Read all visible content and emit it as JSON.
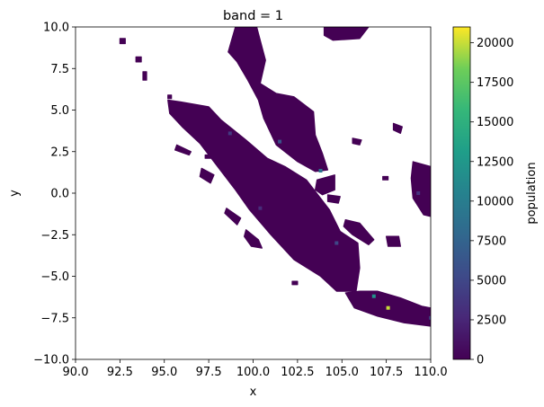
{
  "chart_data": {
    "type": "heatmap",
    "title": "band = 1",
    "xlabel": "x",
    "ylabel": "y",
    "xlim": [
      90.0,
      110.0
    ],
    "ylim": [
      -10.0,
      10.0
    ],
    "x_ticks": [
      "90.0",
      "92.5",
      "95.0",
      "97.5",
      "100.0",
      "102.5",
      "105.0",
      "107.5",
      "110.0"
    ],
    "x_tick_values": [
      90.0,
      92.5,
      95.0,
      97.5,
      100.0,
      102.5,
      105.0,
      107.5,
      110.0
    ],
    "y_ticks": [
      "10.0",
      "7.5",
      "5.0",
      "2.5",
      "0.0",
      "−2.5",
      "−5.0",
      "−7.5",
      "−10.0"
    ],
    "y_tick_values": [
      10.0,
      7.5,
      5.0,
      2.5,
      0.0,
      -2.5,
      -5.0,
      -7.5,
      -10.0
    ],
    "colorbar": {
      "label": "population",
      "range": [
        0,
        21000
      ],
      "colormap": "viridis",
      "ticks": [
        "0",
        "2500",
        "5000",
        "7500",
        "10000",
        "12500",
        "15000",
        "17500",
        "20000"
      ],
      "tick_values": [
        0,
        2500,
        5000,
        7500,
        10000,
        12500,
        15000,
        17500,
        20000
      ]
    },
    "grid": false,
    "land_color": "#440154",
    "hotspots": [
      {
        "lon": 106.8,
        "lat": -6.2,
        "value": 12000
      },
      {
        "lon": 107.6,
        "lat": -6.9,
        "value": 20000
      },
      {
        "lon": 101.5,
        "lat": 3.1,
        "value": 6000
      },
      {
        "lon": 103.8,
        "lat": 1.35,
        "value": 9000
      },
      {
        "lon": 98.7,
        "lat": 3.6,
        "value": 4000
      },
      {
        "lon": 104.7,
        "lat": -3.0,
        "value": 5000
      },
      {
        "lon": 100.4,
        "lat": -0.9,
        "value": 3000
      },
      {
        "lon": 109.3,
        "lat": 0.0,
        "value": 3500
      },
      {
        "lon": 110.0,
        "lat": -7.5,
        "value": 4500
      }
    ],
    "land": [
      {
        "name": "sumatra",
        "points": [
          [
            95.2,
            5.6
          ],
          [
            95.9,
            5.5
          ],
          [
            97.5,
            5.2
          ],
          [
            98.2,
            4.4
          ],
          [
            99.6,
            3.2
          ],
          [
            100.8,
            2.1
          ],
          [
            101.8,
            1.6
          ],
          [
            103.0,
            0.8
          ],
          [
            104.3,
            -1.0
          ],
          [
            104.9,
            -2.3
          ],
          [
            105.9,
            -3.0
          ],
          [
            106.0,
            -4.5
          ],
          [
            105.8,
            -5.9
          ],
          [
            104.7,
            -5.9
          ],
          [
            103.8,
            -5.0
          ],
          [
            102.3,
            -4.0
          ],
          [
            101.0,
            -2.5
          ],
          [
            99.8,
            -1.0
          ],
          [
            99.0,
            0.2
          ],
          [
            98.0,
            1.6
          ],
          [
            97.0,
            3.0
          ],
          [
            96.0,
            4.0
          ],
          [
            95.3,
            4.8
          ]
        ]
      },
      {
        "name": "malay-peninsula",
        "points": [
          [
            99.0,
            10.0
          ],
          [
            100.2,
            10.0
          ],
          [
            100.7,
            8.0
          ],
          [
            100.4,
            6.6
          ],
          [
            101.3,
            6.0
          ],
          [
            102.3,
            5.8
          ],
          [
            103.4,
            4.9
          ],
          [
            103.5,
            3.5
          ],
          [
            103.9,
            2.4
          ],
          [
            104.2,
            1.4
          ],
          [
            103.5,
            1.3
          ],
          [
            102.5,
            1.9
          ],
          [
            101.3,
            2.9
          ],
          [
            100.6,
            4.5
          ],
          [
            100.3,
            5.6
          ],
          [
            99.7,
            6.8
          ],
          [
            99.1,
            7.9
          ],
          [
            98.6,
            8.5
          ]
        ]
      },
      {
        "name": "java",
        "points": [
          [
            105.2,
            -6.0
          ],
          [
            106.0,
            -5.9
          ],
          [
            107.0,
            -5.9
          ],
          [
            108.3,
            -6.3
          ],
          [
            109.5,
            -6.8
          ],
          [
            110.0,
            -6.9
          ],
          [
            110.0,
            -8.0
          ],
          [
            108.5,
            -7.8
          ],
          [
            107.0,
            -7.4
          ],
          [
            105.7,
            -6.9
          ]
        ]
      },
      {
        "name": "thailand-east",
        "points": [
          [
            104.0,
            10.0
          ],
          [
            106.5,
            10.0
          ],
          [
            106.0,
            9.3
          ],
          [
            104.5,
            9.2
          ],
          [
            104.0,
            9.5
          ]
        ]
      },
      {
        "name": "borneo",
        "points": [
          [
            109.0,
            1.9
          ],
          [
            110.0,
            1.6
          ],
          [
            110.0,
            -1.4
          ],
          [
            109.6,
            -1.3
          ],
          [
            109.0,
            -0.3
          ],
          [
            108.9,
            0.9
          ]
        ]
      },
      {
        "name": "bangka",
        "points": [
          [
            105.2,
            -1.6
          ],
          [
            106.0,
            -1.8
          ],
          [
            106.8,
            -2.8
          ],
          [
            106.5,
            -3.1
          ],
          [
            105.6,
            -2.5
          ],
          [
            105.1,
            -2.0
          ]
        ]
      },
      {
        "name": "belitung",
        "points": [
          [
            107.5,
            -2.6
          ],
          [
            108.2,
            -2.6
          ],
          [
            108.3,
            -3.2
          ],
          [
            107.6,
            -3.2
          ]
        ]
      },
      {
        "name": "riau",
        "points": [
          [
            103.6,
            0.8
          ],
          [
            104.6,
            1.1
          ],
          [
            104.6,
            0.2
          ],
          [
            103.9,
            -0.1
          ],
          [
            103.5,
            0.2
          ]
        ]
      },
      {
        "name": "lingga",
        "points": [
          [
            104.2,
            -0.1
          ],
          [
            104.9,
            -0.2
          ],
          [
            104.8,
            -0.6
          ],
          [
            104.2,
            -0.5
          ]
        ]
      },
      {
        "name": "simeulue",
        "points": [
          [
            95.7,
            2.9
          ],
          [
            96.5,
            2.5
          ],
          [
            96.4,
            2.3
          ],
          [
            95.6,
            2.6
          ]
        ]
      },
      {
        "name": "nias",
        "points": [
          [
            97.1,
            1.5
          ],
          [
            97.8,
            1.1
          ],
          [
            97.6,
            0.6
          ],
          [
            97.0,
            1.0
          ]
        ]
      },
      {
        "name": "mentawai-1",
        "points": [
          [
            98.5,
            -0.9
          ],
          [
            99.3,
            -1.5
          ],
          [
            99.1,
            -1.9
          ],
          [
            98.4,
            -1.2
          ]
        ]
      },
      {
        "name": "mentawai-2",
        "points": [
          [
            99.6,
            -2.2
          ],
          [
            100.3,
            -2.8
          ],
          [
            100.5,
            -3.3
          ],
          [
            99.9,
            -3.2
          ],
          [
            99.5,
            -2.6
          ]
        ]
      },
      {
        "name": "enggano",
        "points": [
          [
            102.2,
            -5.3
          ],
          [
            102.5,
            -5.3
          ],
          [
            102.5,
            -5.5
          ],
          [
            102.2,
            -5.5
          ]
        ]
      },
      {
        "name": "natuna",
        "points": [
          [
            107.9,
            4.2
          ],
          [
            108.4,
            4.0
          ],
          [
            108.3,
            3.6
          ],
          [
            107.9,
            3.8
          ]
        ]
      },
      {
        "name": "anambas",
        "points": [
          [
            105.6,
            3.3
          ],
          [
            106.1,
            3.2
          ],
          [
            106.0,
            2.9
          ],
          [
            105.6,
            3.0
          ]
        ]
      },
      {
        "name": "tambelan",
        "points": [
          [
            107.3,
            1.0
          ],
          [
            107.6,
            1.0
          ],
          [
            107.6,
            0.8
          ],
          [
            107.3,
            0.8
          ]
        ]
      },
      {
        "name": "nicobar-1",
        "points": [
          [
            93.4,
            8.2
          ],
          [
            93.7,
            8.2
          ],
          [
            93.7,
            7.9
          ],
          [
            93.4,
            7.9
          ]
        ]
      },
      {
        "name": "nicobar-2",
        "points": [
          [
            93.8,
            7.3
          ],
          [
            94.0,
            7.3
          ],
          [
            94.0,
            6.8
          ],
          [
            93.8,
            6.8
          ]
        ]
      },
      {
        "name": "andaman-s",
        "points": [
          [
            92.5,
            9.3
          ],
          [
            92.8,
            9.3
          ],
          [
            92.8,
            9.0
          ],
          [
            92.5,
            9.0
          ]
        ]
      },
      {
        "name": "weh",
        "points": [
          [
            95.2,
            5.9
          ],
          [
            95.4,
            5.9
          ],
          [
            95.4,
            5.7
          ],
          [
            95.2,
            5.7
          ]
        ]
      },
      {
        "name": "banyak",
        "points": [
          [
            97.3,
            2.3
          ],
          [
            97.6,
            2.3
          ],
          [
            97.6,
            2.1
          ],
          [
            97.3,
            2.1
          ]
        ]
      },
      {
        "name": "madura",
        "points": [
          [
            110.0,
            -6.9
          ],
          [
            110.0,
            -7.1
          ],
          [
            109.8,
            -7.0
          ]
        ]
      }
    ]
  }
}
